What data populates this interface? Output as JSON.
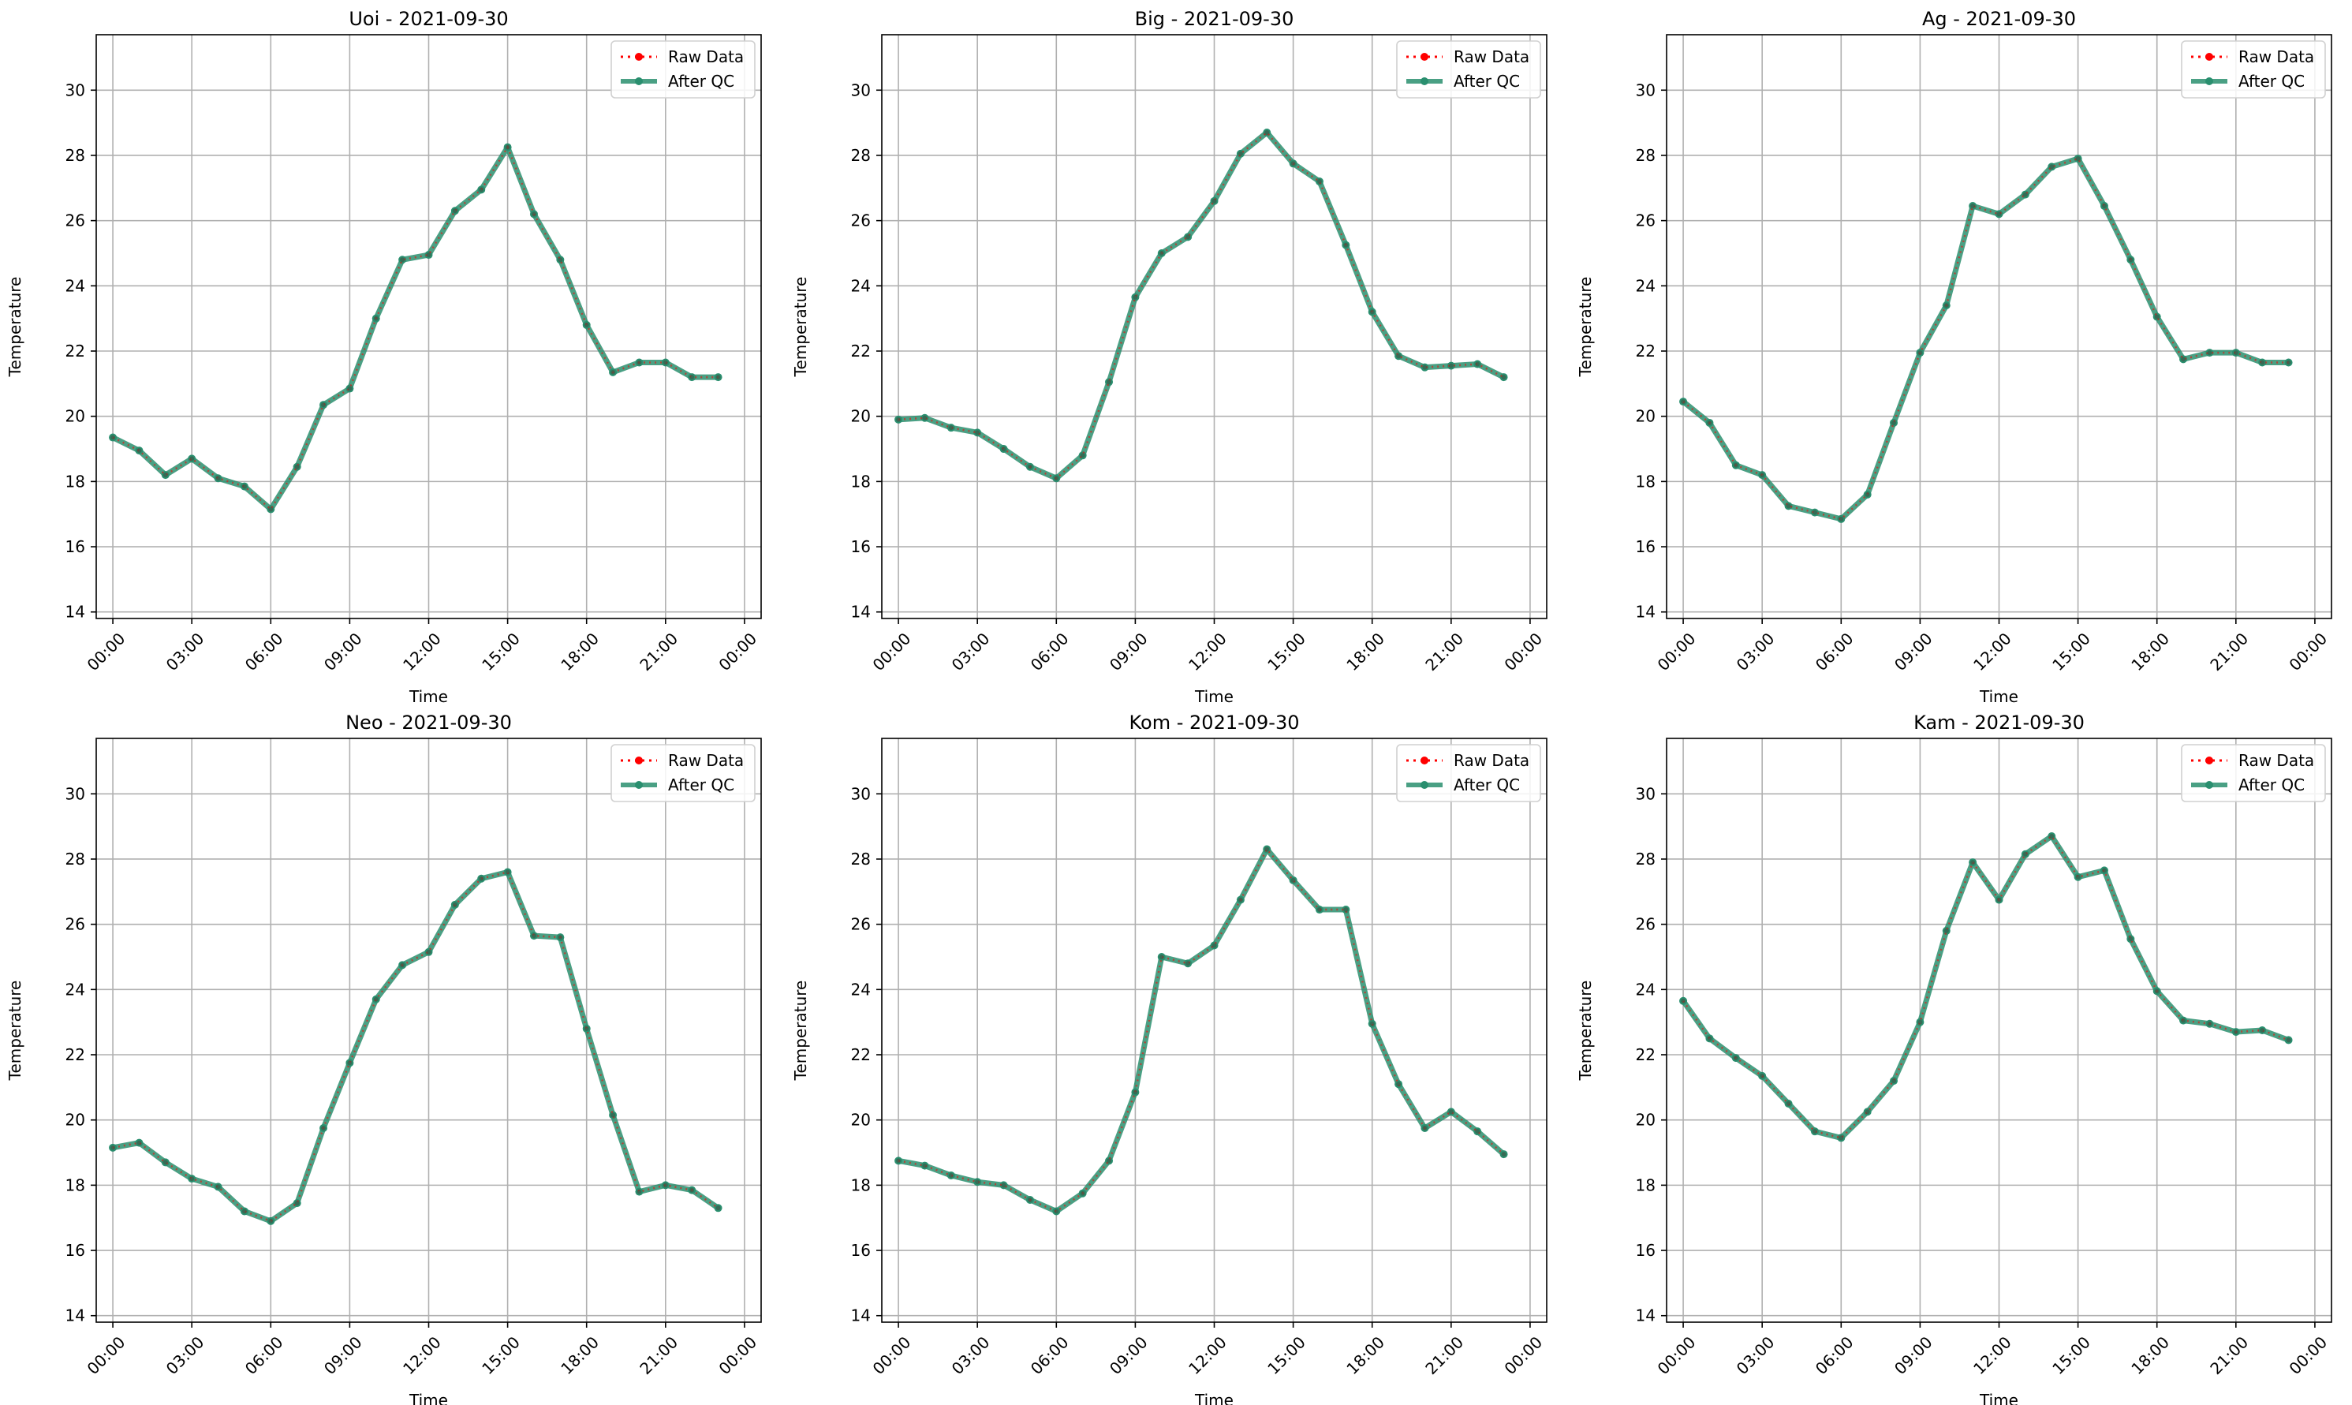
{
  "colors": {
    "raw": "#ff0000",
    "qc": "#2a8f6f",
    "grid": "#b0b0b0",
    "axis": "#000000"
  },
  "icons": {
    "raw_marker": "red-dot-marker",
    "qc_marker": "teal-dot-marker"
  },
  "legend": {
    "raw_label": "Raw Data",
    "qc_label": "After QC",
    "placement": "upper right"
  },
  "chart_data": [
    {
      "type": "line",
      "title": "Uoi - 2021-09-30",
      "xlabel": "Time",
      "ylabel": "Temperature",
      "x": [
        "00:00",
        "01:00",
        "02:00",
        "03:00",
        "04:00",
        "05:00",
        "06:00",
        "07:00",
        "08:00",
        "09:00",
        "10:00",
        "11:00",
        "12:00",
        "13:00",
        "14:00",
        "15:00",
        "16:00",
        "17:00",
        "18:00",
        "19:00",
        "20:00",
        "21:00",
        "22:00",
        "23:00"
      ],
      "xticks": [
        "00:00",
        "03:00",
        "06:00",
        "09:00",
        "12:00",
        "15:00",
        "18:00",
        "21:00",
        "00:00"
      ],
      "ylim": [
        13.8,
        31.7
      ],
      "yticks": [
        14,
        16,
        18,
        20,
        22,
        24,
        26,
        28,
        30
      ],
      "grid": true,
      "series": [
        {
          "name": "Raw Data",
          "values": [
            19.35,
            18.95,
            18.2,
            18.7,
            18.1,
            17.85,
            17.15,
            18.45,
            20.35,
            20.85,
            23.0,
            24.8,
            24.95,
            26.3,
            26.95,
            28.25,
            26.2,
            24.8,
            22.8,
            21.35,
            21.65,
            21.65,
            21.2,
            21.2
          ]
        },
        {
          "name": "After QC",
          "values": [
            19.35,
            18.95,
            18.2,
            18.7,
            18.1,
            17.85,
            17.15,
            18.45,
            20.35,
            20.85,
            23.0,
            24.8,
            24.95,
            26.3,
            26.95,
            28.25,
            26.2,
            24.8,
            22.8,
            21.35,
            21.65,
            21.65,
            21.2,
            21.2
          ]
        }
      ]
    },
    {
      "type": "line",
      "title": "Big - 2021-09-30",
      "xlabel": "Time",
      "ylabel": "Temperature",
      "x": [
        "00:00",
        "01:00",
        "02:00",
        "03:00",
        "04:00",
        "05:00",
        "06:00",
        "07:00",
        "08:00",
        "09:00",
        "10:00",
        "11:00",
        "12:00",
        "13:00",
        "14:00",
        "15:00",
        "16:00",
        "17:00",
        "18:00",
        "19:00",
        "20:00",
        "21:00",
        "22:00",
        "23:00"
      ],
      "xticks": [
        "00:00",
        "03:00",
        "06:00",
        "09:00",
        "12:00",
        "15:00",
        "18:00",
        "21:00",
        "00:00"
      ],
      "ylim": [
        13.8,
        31.7
      ],
      "yticks": [
        14,
        16,
        18,
        20,
        22,
        24,
        26,
        28,
        30
      ],
      "grid": true,
      "series": [
        {
          "name": "Raw Data",
          "values": [
            19.9,
            19.95,
            19.65,
            19.5,
            19.0,
            18.45,
            18.1,
            18.8,
            21.05,
            23.65,
            25.0,
            25.5,
            26.6,
            28.05,
            28.7,
            27.75,
            27.2,
            25.25,
            23.2,
            21.85,
            21.5,
            21.55,
            21.6,
            21.2
          ]
        },
        {
          "name": "After QC",
          "values": [
            19.9,
            19.95,
            19.65,
            19.5,
            19.0,
            18.45,
            18.1,
            18.8,
            21.05,
            23.65,
            25.0,
            25.5,
            26.6,
            28.05,
            28.7,
            27.75,
            27.2,
            25.25,
            23.2,
            21.85,
            21.5,
            21.55,
            21.6,
            21.2
          ]
        }
      ]
    },
    {
      "type": "line",
      "title": "Ag - 2021-09-30",
      "xlabel": "Time",
      "ylabel": "Temperature",
      "x": [
        "00:00",
        "01:00",
        "02:00",
        "03:00",
        "04:00",
        "05:00",
        "06:00",
        "07:00",
        "08:00",
        "09:00",
        "10:00",
        "11:00",
        "12:00",
        "13:00",
        "14:00",
        "15:00",
        "16:00",
        "17:00",
        "18:00",
        "19:00",
        "20:00",
        "21:00",
        "22:00",
        "23:00"
      ],
      "xticks": [
        "00:00",
        "03:00",
        "06:00",
        "09:00",
        "12:00",
        "15:00",
        "18:00",
        "21:00",
        "00:00"
      ],
      "ylim": [
        13.8,
        31.7
      ],
      "yticks": [
        14,
        16,
        18,
        20,
        22,
        24,
        26,
        28,
        30
      ],
      "grid": true,
      "series": [
        {
          "name": "Raw Data",
          "values": [
            20.45,
            19.8,
            18.5,
            18.2,
            17.25,
            17.05,
            16.85,
            17.6,
            19.8,
            21.95,
            23.4,
            26.45,
            26.2,
            26.8,
            27.65,
            27.9,
            26.45,
            24.8,
            23.05,
            21.75,
            21.95,
            21.95,
            21.65,
            21.65
          ]
        },
        {
          "name": "After QC",
          "values": [
            20.45,
            19.8,
            18.5,
            18.2,
            17.25,
            17.05,
            16.85,
            17.6,
            19.8,
            21.95,
            23.4,
            26.45,
            26.2,
            26.8,
            27.65,
            27.9,
            26.45,
            24.8,
            23.05,
            21.75,
            21.95,
            21.95,
            21.65,
            21.65
          ]
        }
      ]
    },
    {
      "type": "line",
      "title": "Neo - 2021-09-30",
      "xlabel": "Time",
      "ylabel": "Temperature",
      "x": [
        "00:00",
        "01:00",
        "02:00",
        "03:00",
        "04:00",
        "05:00",
        "06:00",
        "07:00",
        "08:00",
        "09:00",
        "10:00",
        "11:00",
        "12:00",
        "13:00",
        "14:00",
        "15:00",
        "16:00",
        "17:00",
        "18:00",
        "19:00",
        "20:00",
        "21:00",
        "22:00",
        "23:00"
      ],
      "xticks": [
        "00:00",
        "03:00",
        "06:00",
        "09:00",
        "12:00",
        "15:00",
        "18:00",
        "21:00",
        "00:00"
      ],
      "ylim": [
        13.8,
        31.7
      ],
      "yticks": [
        14,
        16,
        18,
        20,
        22,
        24,
        26,
        28,
        30
      ],
      "grid": true,
      "series": [
        {
          "name": "Raw Data",
          "values": [
            19.15,
            19.3,
            18.7,
            18.2,
            17.95,
            17.2,
            16.9,
            17.45,
            19.75,
            21.75,
            23.7,
            24.75,
            25.15,
            26.6,
            27.4,
            27.6,
            25.65,
            25.6,
            22.8,
            20.15,
            17.8,
            18.0,
            17.85,
            17.3
          ]
        },
        {
          "name": "After QC",
          "values": [
            19.15,
            19.3,
            18.7,
            18.2,
            17.95,
            17.2,
            16.9,
            17.45,
            19.75,
            21.75,
            23.7,
            24.75,
            25.15,
            26.6,
            27.4,
            27.6,
            25.65,
            25.6,
            22.8,
            20.15,
            17.8,
            18.0,
            17.85,
            17.3
          ]
        }
      ]
    },
    {
      "type": "line",
      "title": "Kom - 2021-09-30",
      "xlabel": "Time",
      "ylabel": "Temperature",
      "x": [
        "00:00",
        "01:00",
        "02:00",
        "03:00",
        "04:00",
        "05:00",
        "06:00",
        "07:00",
        "08:00",
        "09:00",
        "10:00",
        "11:00",
        "12:00",
        "13:00",
        "14:00",
        "15:00",
        "16:00",
        "17:00",
        "18:00",
        "19:00",
        "20:00",
        "21:00",
        "22:00",
        "23:00"
      ],
      "xticks": [
        "00:00",
        "03:00",
        "06:00",
        "09:00",
        "12:00",
        "15:00",
        "18:00",
        "21:00",
        "00:00"
      ],
      "ylim": [
        13.8,
        31.7
      ],
      "yticks": [
        14,
        16,
        18,
        20,
        22,
        24,
        26,
        28,
        30
      ],
      "grid": true,
      "series": [
        {
          "name": "Raw Data",
          "values": [
            18.75,
            18.6,
            18.3,
            18.1,
            18.0,
            17.55,
            17.2,
            17.75,
            18.75,
            20.85,
            25.0,
            24.8,
            25.35,
            26.75,
            28.3,
            27.35,
            26.45,
            26.45,
            22.95,
            21.1,
            19.75,
            20.25,
            19.65,
            18.95
          ]
        },
        {
          "name": "After QC",
          "values": [
            18.75,
            18.6,
            18.3,
            18.1,
            18.0,
            17.55,
            17.2,
            17.75,
            18.75,
            20.85,
            25.0,
            24.8,
            25.35,
            26.75,
            28.3,
            27.35,
            26.45,
            26.45,
            22.95,
            21.1,
            19.75,
            20.25,
            19.65,
            18.95
          ]
        }
      ]
    },
    {
      "type": "line",
      "title": "Kam - 2021-09-30",
      "xlabel": "Time",
      "ylabel": "Temperature",
      "x": [
        "00:00",
        "01:00",
        "02:00",
        "03:00",
        "04:00",
        "05:00",
        "06:00",
        "07:00",
        "08:00",
        "09:00",
        "10:00",
        "11:00",
        "12:00",
        "13:00",
        "14:00",
        "15:00",
        "16:00",
        "17:00",
        "18:00",
        "19:00",
        "20:00",
        "21:00",
        "22:00",
        "23:00"
      ],
      "xticks": [
        "00:00",
        "03:00",
        "06:00",
        "09:00",
        "12:00",
        "15:00",
        "18:00",
        "21:00",
        "00:00"
      ],
      "ylim": [
        13.8,
        31.7
      ],
      "yticks": [
        14,
        16,
        18,
        20,
        22,
        24,
        26,
        28,
        30
      ],
      "grid": true,
      "series": [
        {
          "name": "Raw Data",
          "values": [
            23.65,
            22.5,
            21.9,
            21.35,
            20.5,
            19.65,
            19.45,
            20.25,
            21.2,
            23.0,
            25.8,
            27.9,
            26.75,
            28.15,
            28.7,
            27.45,
            27.65,
            25.55,
            23.95,
            23.05,
            22.95,
            22.7,
            22.75,
            22.45
          ]
        },
        {
          "name": "After QC",
          "values": [
            23.65,
            22.5,
            21.9,
            21.35,
            20.5,
            19.65,
            19.45,
            20.25,
            21.2,
            23.0,
            25.8,
            27.9,
            26.75,
            28.15,
            28.7,
            27.45,
            27.65,
            25.55,
            23.95,
            23.05,
            22.95,
            22.7,
            22.75,
            22.45
          ]
        }
      ]
    }
  ]
}
